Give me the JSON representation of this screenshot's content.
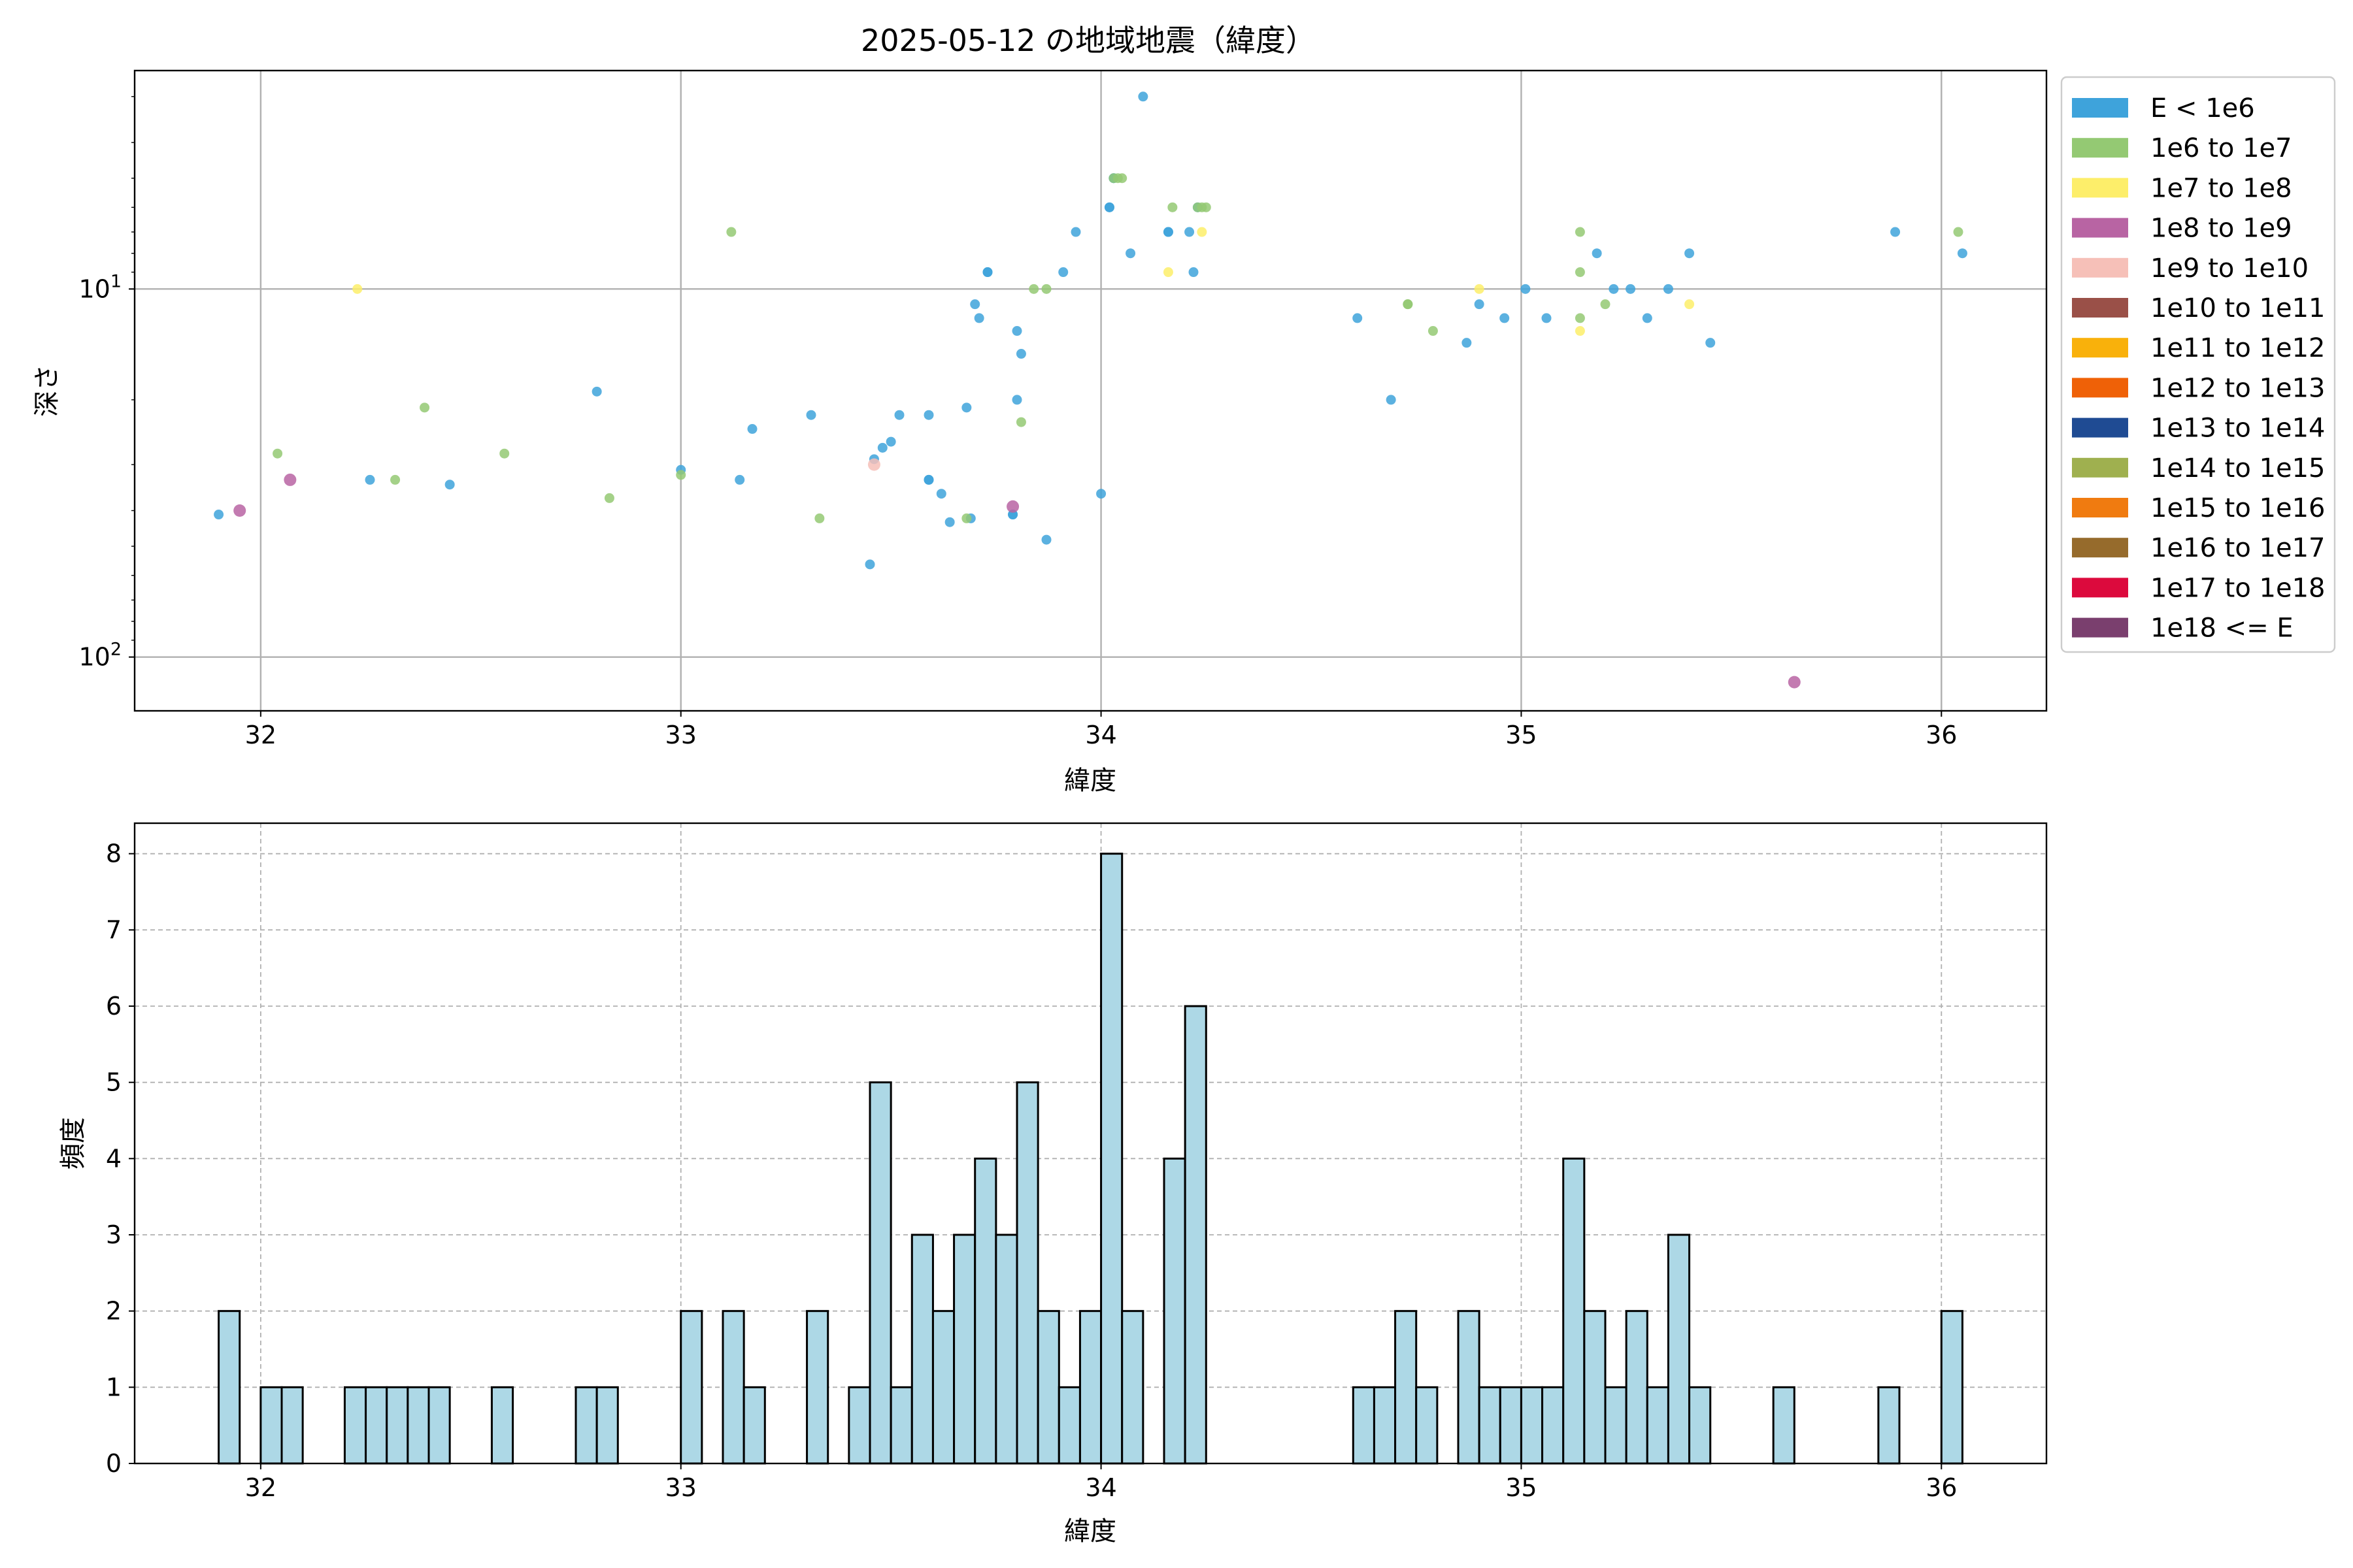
{
  "chart_data": [
    {
      "type": "scatter",
      "title": "2025-05-12 の地域地震（緯度）",
      "xlabel": "緯度",
      "ylabel": "深さ",
      "xlim": [
        31.7,
        36.25
      ],
      "ylim": [
        140,
        2.55
      ],
      "yscale": "log",
      "y_inverted": true,
      "grid": true,
      "x_ticks": [
        "32",
        "33",
        "34",
        "35",
        "36"
      ],
      "x_tick_values": [
        32,
        33,
        34,
        35,
        36
      ],
      "y_tick_values": [
        10,
        100
      ],
      "y_tick_labels": [
        {
          "base": "10",
          "exp": "1"
        },
        {
          "base": "10",
          "exp": "2"
        }
      ],
      "legend_position": "outside-right",
      "legend": [
        {
          "label": "E < 1e6",
          "color": "#3ea3db"
        },
        {
          "label": "1e6 to 1e7",
          "color": "#94c973"
        },
        {
          "label": "1e7 to 1e8",
          "color": "#fdee6a"
        },
        {
          "label": "1e8 to 1e9",
          "color": "#b864a3"
        },
        {
          "label": "1e9 to 1e10",
          "color": "#f6c0b8"
        },
        {
          "label": "1e10 to 1e11",
          "color": "#9a5048"
        },
        {
          "label": "1e11 to 1e12",
          "color": "#f9b10b"
        },
        {
          "label": "1e12 to 1e13",
          "color": "#ef6107"
        },
        {
          "label": "1e13 to 1e14",
          "color": "#1f4b93"
        },
        {
          "label": "1e14 to 1e15",
          "color": "#9fb04f"
        },
        {
          "label": "1e15 to 1e16",
          "color": "#f07b10"
        },
        {
          "label": "1e16 to 1e17",
          "color": "#966b2c"
        },
        {
          "label": "1e17 to 1e18",
          "color": "#dc0a3d"
        },
        {
          "label": "1e18 <= E",
          "color": "#7a3f6e"
        }
      ],
      "series": [
        {
          "color": "#3ea3db",
          "points": [
            [
              31.9,
              41
            ],
            [
              32.26,
              33
            ],
            [
              32.45,
              34
            ],
            [
              32.8,
              19
            ],
            [
              33.0,
              31
            ],
            [
              33.14,
              33
            ],
            [
              33.17,
              24
            ],
            [
              33.31,
              22
            ],
            [
              33.45,
              56
            ],
            [
              33.46,
              29
            ],
            [
              33.48,
              27
            ],
            [
              33.5,
              26
            ],
            [
              33.52,
              22
            ],
            [
              33.59,
              33
            ],
            [
              33.59,
              33
            ],
            [
              33.59,
              22
            ],
            [
              33.62,
              36
            ],
            [
              33.64,
              43
            ],
            [
              33.68,
              21
            ],
            [
              33.69,
              42
            ],
            [
              33.7,
              11
            ],
            [
              33.71,
              12
            ],
            [
              33.73,
              9
            ],
            [
              33.73,
              9
            ],
            [
              33.79,
              41
            ],
            [
              33.79,
              41
            ],
            [
              33.8,
              13
            ],
            [
              33.8,
              20
            ],
            [
              33.81,
              15
            ],
            [
              33.87,
              48
            ],
            [
              33.91,
              9
            ],
            [
              33.94,
              7
            ],
            [
              34.0,
              36
            ],
            [
              34.02,
              6
            ],
            [
              34.02,
              6
            ],
            [
              34.03,
              5
            ],
            [
              34.03,
              5
            ],
            [
              34.07,
              8
            ],
            [
              34.1,
              3
            ],
            [
              34.16,
              7
            ],
            [
              34.16,
              7
            ],
            [
              34.21,
              7
            ],
            [
              34.22,
              9
            ],
            [
              34.23,
              6
            ],
            [
              34.61,
              12
            ],
            [
              34.69,
              20
            ],
            [
              34.87,
              14
            ],
            [
              34.9,
              11
            ],
            [
              34.96,
              12
            ],
            [
              35.01,
              10
            ],
            [
              35.06,
              12
            ],
            [
              35.18,
              8
            ],
            [
              35.22,
              10
            ],
            [
              35.26,
              10
            ],
            [
              35.3,
              12
            ],
            [
              35.35,
              10
            ],
            [
              35.4,
              8
            ],
            [
              35.45,
              14
            ],
            [
              35.89,
              7
            ],
            [
              36.05,
              8
            ]
          ]
        },
        {
          "color": "#94c973",
          "points": [
            [
              32.04,
              28
            ],
            [
              32.32,
              33
            ],
            [
              32.39,
              21
            ],
            [
              32.58,
              28
            ],
            [
              32.83,
              37
            ],
            [
              33.0,
              32
            ],
            [
              33.12,
              7
            ],
            [
              33.33,
              42
            ],
            [
              33.68,
              42
            ],
            [
              33.81,
              23
            ],
            [
              33.84,
              10
            ],
            [
              33.87,
              10
            ],
            [
              34.03,
              5
            ],
            [
              34.04,
              5
            ],
            [
              34.05,
              5
            ],
            [
              34.17,
              6
            ],
            [
              34.23,
              6
            ],
            [
              34.24,
              6
            ],
            [
              34.25,
              6
            ],
            [
              34.73,
              11
            ],
            [
              34.73,
              11
            ],
            [
              34.79,
              13
            ],
            [
              35.14,
              12
            ],
            [
              35.14,
              9
            ],
            [
              35.14,
              7
            ],
            [
              35.2,
              11
            ],
            [
              36.04,
              7
            ]
          ]
        },
        {
          "color": "#fdee6a",
          "points": [
            [
              32.23,
              10
            ],
            [
              34.16,
              9
            ],
            [
              34.24,
              7
            ],
            [
              34.9,
              10
            ],
            [
              35.14,
              13
            ],
            [
              35.4,
              11
            ]
          ]
        },
        {
          "color": "#b864a3",
          "points": [
            [
              31.95,
              40
            ],
            [
              32.07,
              33
            ],
            [
              33.79,
              39
            ],
            [
              35.65,
              117
            ]
          ]
        },
        {
          "color": "#f6c0b8",
          "points": [
            [
              33.46,
              30
            ]
          ]
        }
      ]
    },
    {
      "type": "bar",
      "xlabel": "緯度",
      "ylabel": "頻度",
      "xlim": [
        31.7,
        36.25
      ],
      "ylim": [
        0,
        8.4
      ],
      "bin_width": 0.05,
      "grid": "dashed",
      "x_ticks": [
        "32",
        "33",
        "34",
        "35",
        "36"
      ],
      "x_tick_values": [
        32,
        33,
        34,
        35,
        36
      ],
      "y_ticks": [
        "0",
        "1",
        "2",
        "3",
        "4",
        "5",
        "6",
        "7",
        "8"
      ],
      "bin_edges_start": [
        31.9,
        32.0,
        32.05,
        32.2,
        32.25,
        32.3,
        32.35,
        32.4,
        32.55,
        32.75,
        32.8,
        33.0,
        33.1,
        33.15,
        33.3,
        33.4,
        33.45,
        33.5,
        33.55,
        33.6,
        33.65,
        33.7,
        33.75,
        33.8,
        33.85,
        33.9,
        33.95,
        34.0,
        34.05,
        34.15,
        34.2,
        34.6,
        34.65,
        34.7,
        34.75,
        34.85,
        34.9,
        34.95,
        35.0,
        35.05,
        35.1,
        35.15,
        35.2,
        35.25,
        35.3,
        35.35,
        35.4,
        35.6,
        35.85,
        36.0
      ],
      "values": [
        2,
        1,
        1,
        1,
        1,
        1,
        1,
        1,
        1,
        1,
        1,
        2,
        2,
        1,
        2,
        1,
        5,
        1,
        3,
        2,
        3,
        4,
        3,
        5,
        2,
        1,
        2,
        8,
        2,
        4,
        6,
        1,
        1,
        2,
        1,
        2,
        1,
        1,
        1,
        1,
        4,
        2,
        1,
        2,
        1,
        3,
        1,
        1,
        1,
        2
      ],
      "bar_color": "#add8e6"
    }
  ]
}
